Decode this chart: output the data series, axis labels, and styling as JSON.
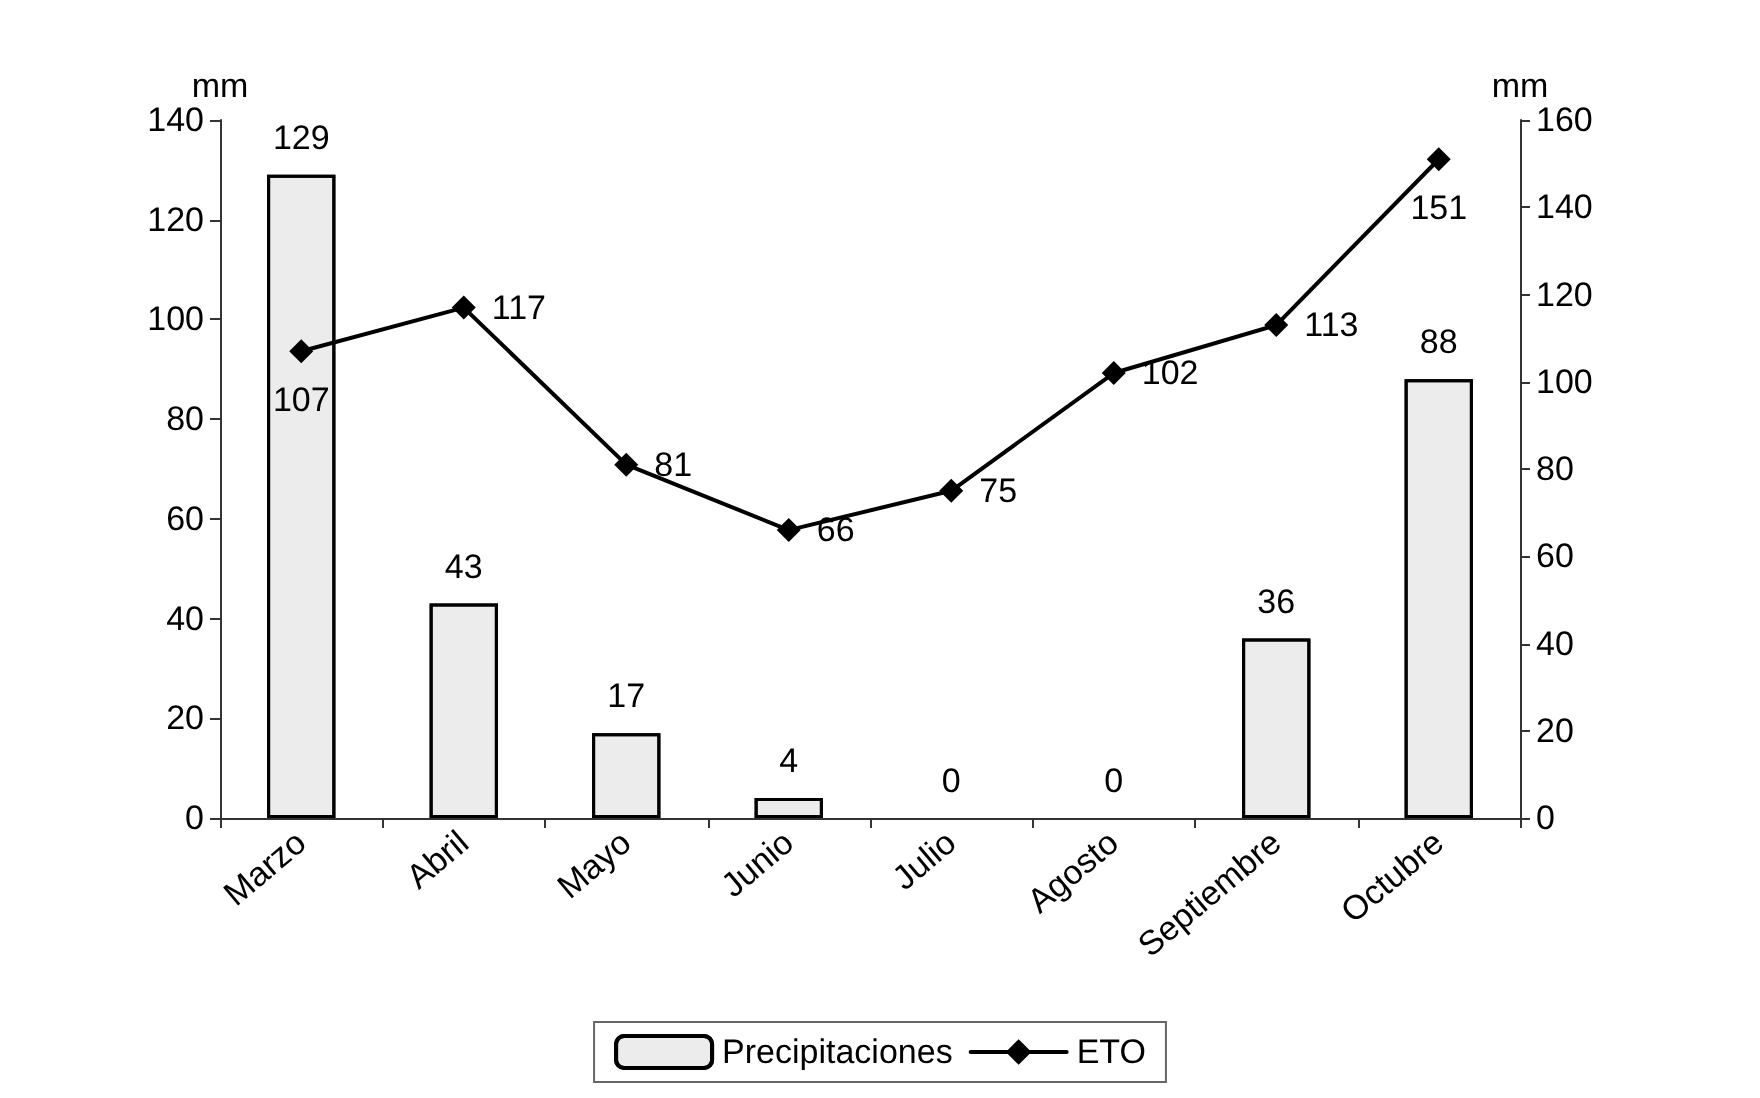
{
  "chart_data": {
    "type": "bar",
    "ylabel": "mm",
    "y2label": "mm",
    "categories": [
      "Marzo",
      "Abril",
      "Mayo",
      "Junio",
      "Julio",
      "Agosto",
      "Septiembre",
      "Octubre"
    ],
    "series": [
      {
        "name": "Precipitaciones",
        "color": "#ececec",
        "values": [
          129,
          43,
          17,
          4,
          0,
          0,
          36,
          88
        ]
      },
      {
        "name": "ETO",
        "type": "line",
        "axis": "y2",
        "color": "#000000",
        "marker": "diamond",
        "values": [
          107,
          117,
          81,
          66,
          75,
          102,
          113,
          151
        ]
      }
    ],
    "ylim": [
      0,
      140
    ],
    "yticks": [
      0,
      20,
      40,
      60,
      80,
      100,
      120,
      140
    ],
    "y2lim": [
      0,
      160
    ],
    "y2ticks": [
      0,
      20,
      40,
      60,
      80,
      100,
      120,
      140,
      160
    ],
    "data_labels": true,
    "legend": "bottom",
    "grid": false
  }
}
